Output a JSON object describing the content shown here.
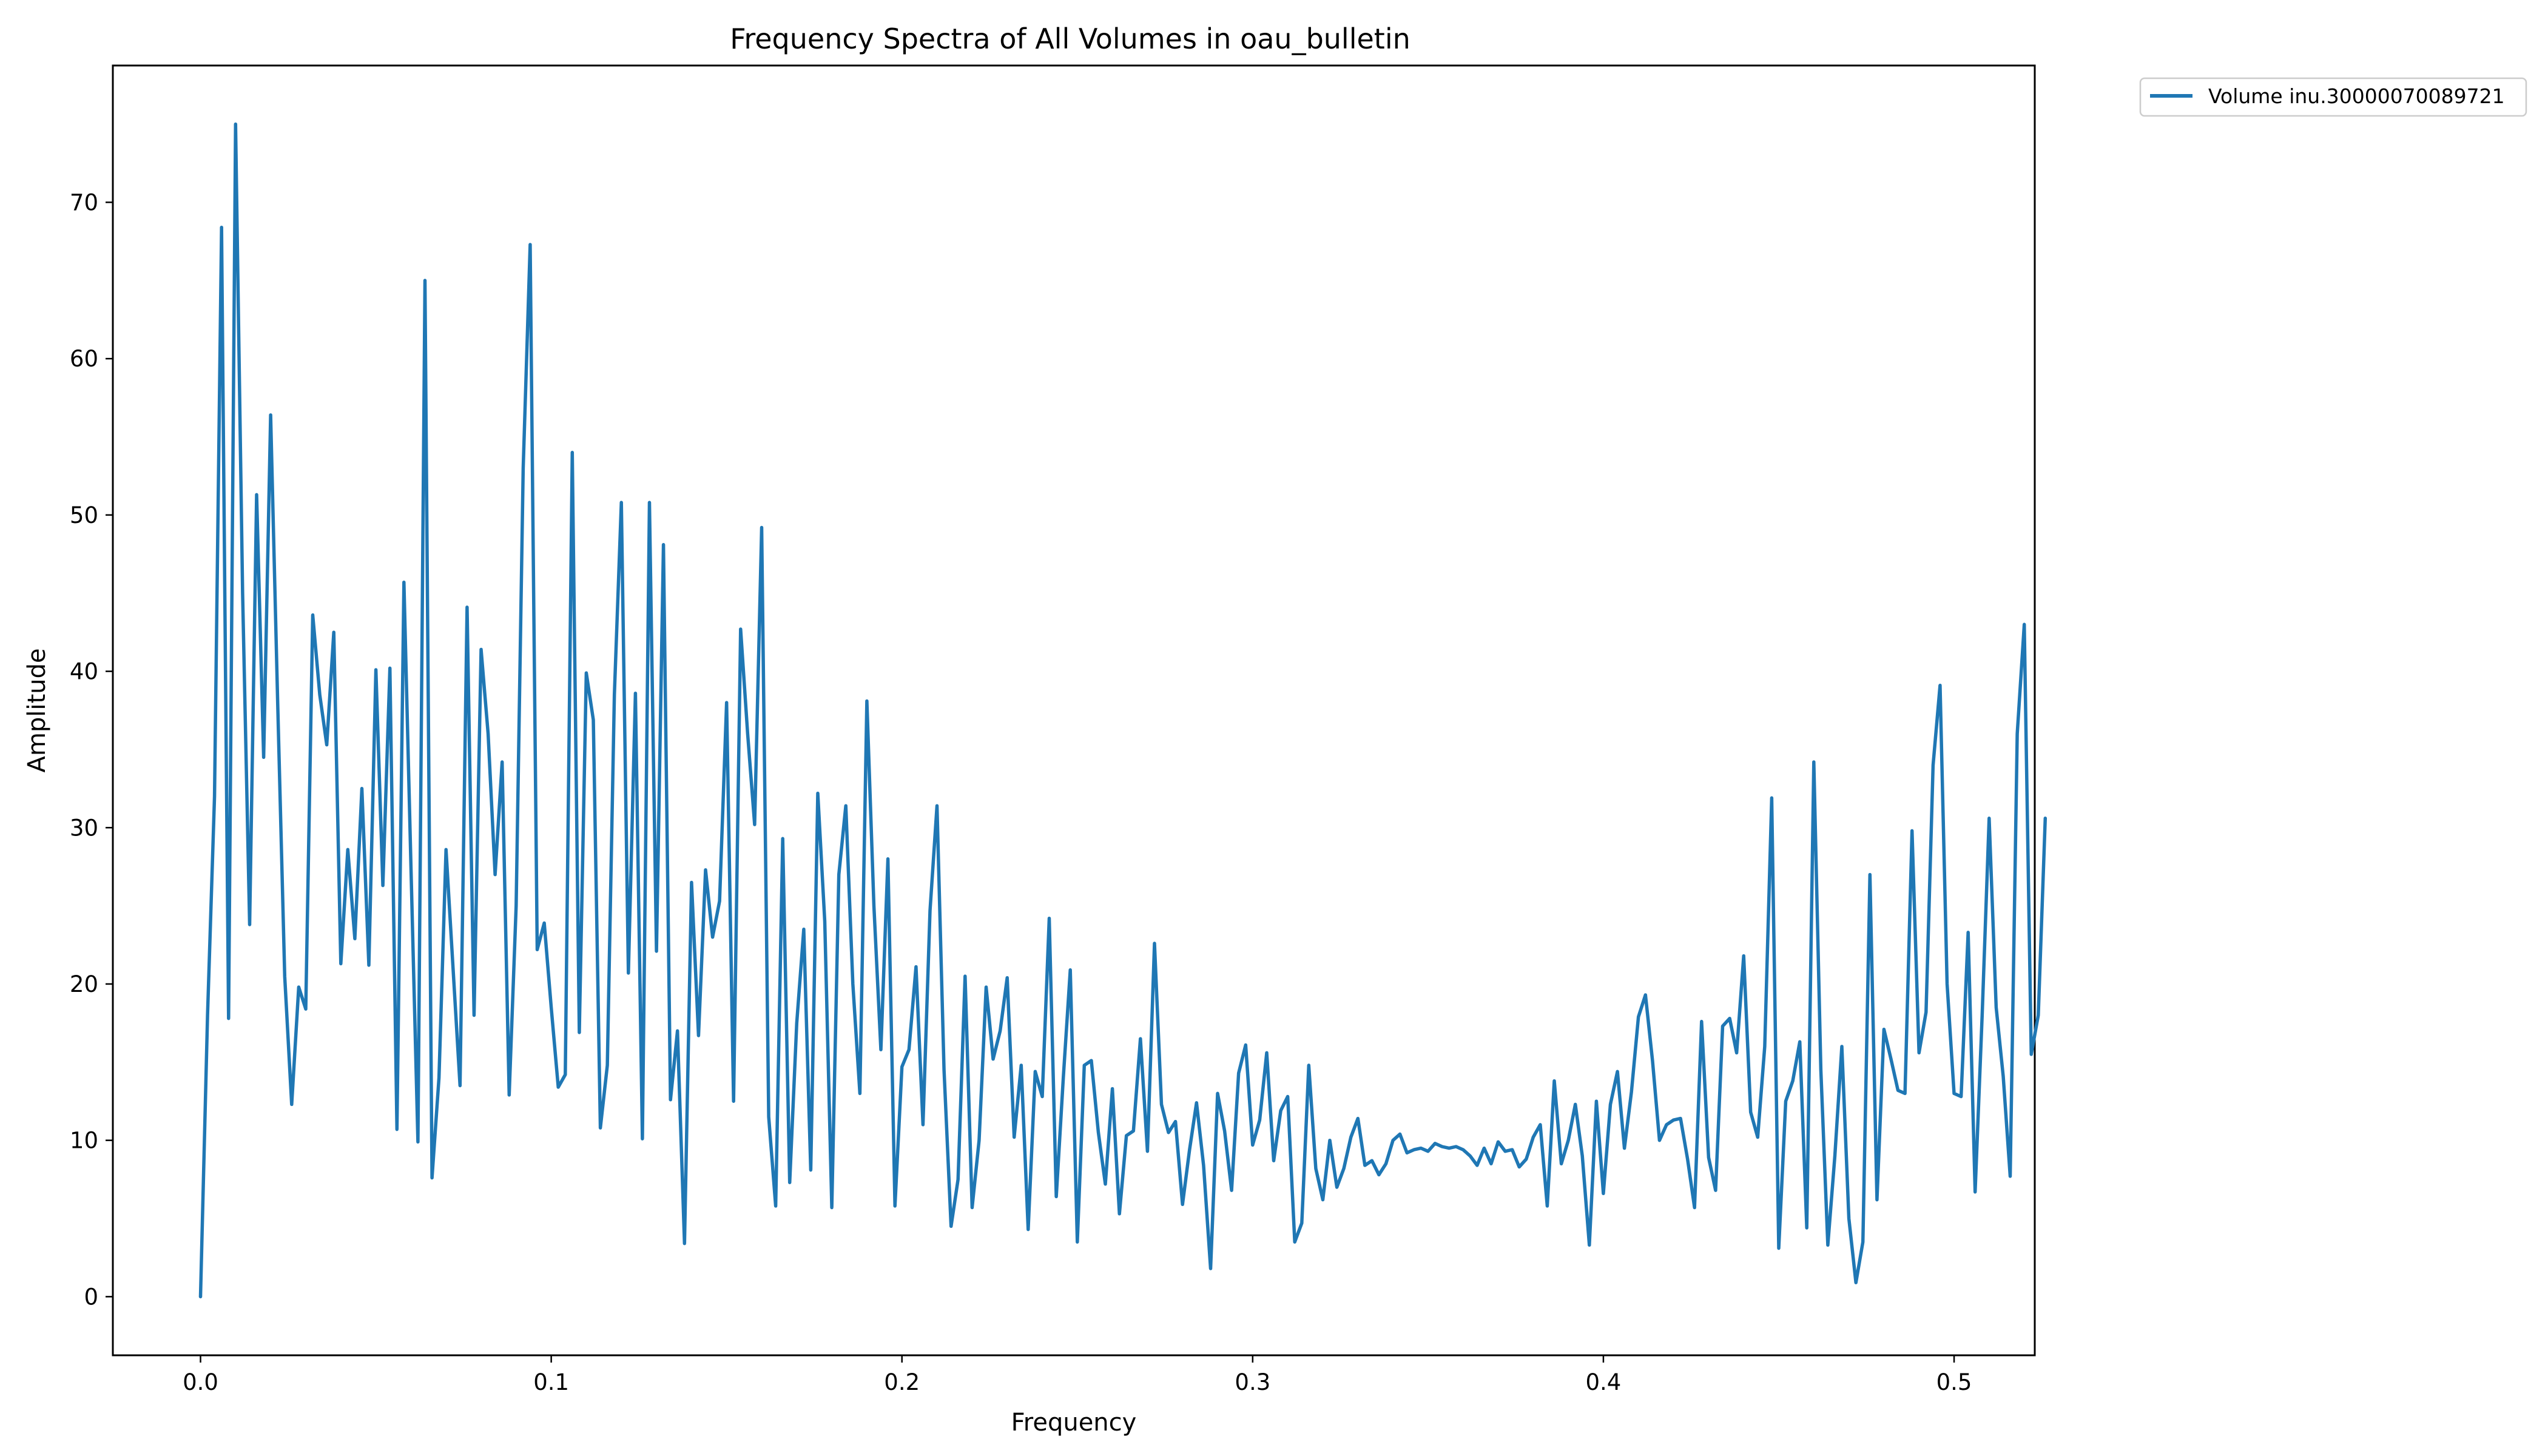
{
  "chart_data": {
    "type": "line",
    "title": "Frequency Spectra of All Volumes in oau_bulletin",
    "xlabel": "Frequency",
    "ylabel": "Amplitude",
    "xlim": [
      -0.025,
      0.523
    ],
    "ylim": [
      -3.75,
      78.75
    ],
    "x_ticks": [
      0.0,
      0.1,
      0.2,
      0.3,
      0.4,
      0.5
    ],
    "x_tick_labels": [
      "0.0",
      "0.1",
      "0.2",
      "0.3",
      "0.4",
      "0.5"
    ],
    "y_ticks": [
      0,
      10,
      20,
      30,
      40,
      50,
      60,
      70
    ],
    "y_tick_labels": [
      "0",
      "10",
      "20",
      "30",
      "40",
      "50",
      "60",
      "70"
    ],
    "grid": false,
    "legend_position": "outside-top-right",
    "series": [
      {
        "name": "Volume inu.30000070089721",
        "color": "#1f77b4",
        "x_start": 0.0,
        "x_step": 0.002,
        "values": [
          0,
          18,
          32,
          68.4,
          17.8,
          75,
          45,
          23.8,
          51.3,
          34.5,
          56.4,
          38,
          20.5,
          12.3,
          19.8,
          18.4,
          43.6,
          38.5,
          35.3,
          42.5,
          21.3,
          28.6,
          22.9,
          32.5,
          21.2,
          40.1,
          26.3,
          40.2,
          10.7,
          45.7,
          27.5,
          9.9,
          65,
          7.6,
          14,
          28.6,
          21,
          13.5,
          44.1,
          18,
          41.4,
          36,
          27,
          34.2,
          12.9,
          25,
          53,
          67.3,
          22.2,
          23.9,
          18.5,
          13.4,
          14.2,
          54,
          16.9,
          39.9,
          36.9,
          10.8,
          14.8,
          38.5,
          50.8,
          20.7,
          38.6,
          10.1,
          50.8,
          22.1,
          48.1,
          12.6,
          17,
          3.4,
          26.5,
          16.7,
          27.3,
          23,
          25.3,
          38,
          12.5,
          42.7,
          36,
          30.2,
          49.2,
          11.5,
          5.8,
          29.3,
          7.3,
          17.5,
          23.5,
          8.1,
          32.2,
          24,
          5.7,
          27,
          31.4,
          20,
          13,
          38.1,
          25,
          15.8,
          28,
          5.8,
          14.7,
          15.8,
          21.1,
          11,
          24.7,
          31.4,
          14.5,
          4.5,
          7.5,
          20.5,
          5.7,
          10,
          19.8,
          15.2,
          17,
          20.4,
          10.2,
          14.8,
          4.3,
          14.4,
          12.8,
          24.2,
          6.4,
          14,
          20.9,
          3.5,
          14.8,
          15.1,
          10.5,
          7.2,
          13.3,
          5.3,
          10.3,
          10.6,
          16.5,
          9.3,
          22.6,
          12.3,
          10.5,
          11.2,
          5.9,
          9.4,
          12.4,
          8.4,
          1.8,
          13,
          10.6,
          6.8,
          14.3,
          16.1,
          9.7,
          11.3,
          15.6,
          8.7,
          11.9,
          12.8,
          3.5,
          4.7,
          14.8,
          8.2,
          6.2,
          10,
          7,
          8.2,
          10.2,
          11.4,
          8.4,
          8.7,
          7.8,
          8.5,
          10,
          10.4,
          9.2,
          9.4,
          9.5,
          9.3,
          9.8,
          9.6,
          9.5,
          9.6,
          9.4,
          9,
          8.4,
          9.5,
          8.5,
          9.9,
          9.3,
          9.4,
          8.3,
          8.8,
          10.2,
          11,
          5.8,
          13.8,
          8.5,
          10,
          12.3,
          9,
          3.3,
          12.5,
          6.6,
          12.3,
          14.4,
          9.5,
          13.1,
          17.9,
          19.3,
          15.1,
          10,
          11,
          11.3,
          11.4,
          8.8,
          5.7,
          17.6,
          8.9,
          6.8,
          17.3,
          17.8,
          15.6,
          21.8,
          11.8,
          10.2,
          16,
          31.9,
          3.1,
          12.5,
          13.8,
          16.3,
          4.4,
          34.2,
          14.5,
          3.3,
          9,
          16,
          5,
          0.9,
          3.5,
          27,
          6.2,
          17.1,
          15.2,
          13.2,
          13,
          29.8,
          15.6,
          18.2,
          34,
          39.1,
          20,
          13,
          12.8,
          23.3,
          6.7,
          18,
          30.6,
          18.5,
          14.1,
          7.7,
          36,
          43,
          15.5,
          18,
          30.6
        ]
      }
    ]
  }
}
